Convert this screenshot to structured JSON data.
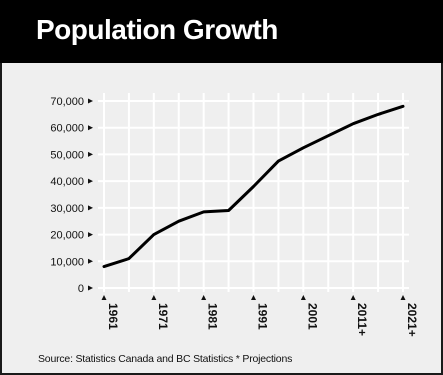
{
  "chart_data": {
    "type": "line",
    "title": "Population Growth",
    "xlabel": "",
    "ylabel": "",
    "x": [
      1961,
      1966,
      1971,
      1976,
      1981,
      1986,
      1991,
      1996,
      2001,
      2006,
      2011,
      2016,
      2021,
      2026
    ],
    "series": [
      {
        "values": [
          8000,
          11000,
          20000,
          25000,
          28500,
          29000,
          38000,
          47500,
          52500,
          57000,
          61500,
          65000,
          68000,
          68000
        ]
      }
    ],
    "x_display_points": 13,
    "ylim": [
      0,
      70000
    ],
    "xlim": [
      1961,
      2021
    ],
    "yticks": [
      0,
      10000,
      20000,
      30000,
      40000,
      50000,
      60000,
      70000
    ],
    "ytick_labels": [
      "0",
      "10,000",
      "20,000",
      "30,000",
      "40,000",
      "50,000",
      "60,000",
      "70,000"
    ],
    "xticks": [
      1961,
      1971,
      1981,
      1991,
      2001,
      2011,
      2021
    ],
    "xtick_labels": [
      "1961",
      "1971",
      "1981",
      "1991",
      "2001",
      "2011+",
      "2021+"
    ],
    "grid": true,
    "legend": "none",
    "colors": {
      "line": "#000000",
      "grid": "#ffffff",
      "background": "#efefef",
      "title_bar": "#000000"
    }
  },
  "footer": {
    "source": "Source: Statistics Canada and BC Statistics   * Projections"
  }
}
